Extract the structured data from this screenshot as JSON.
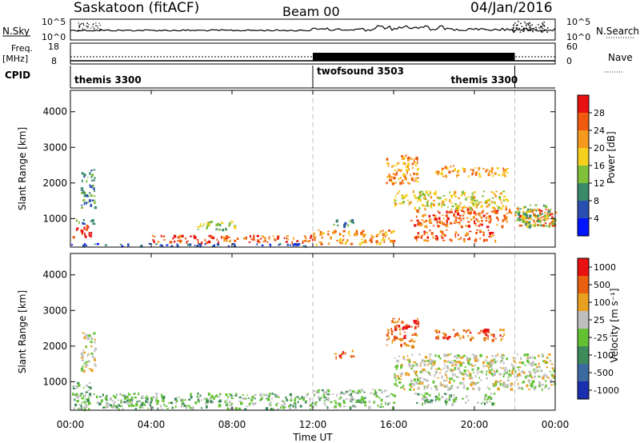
{
  "header": {
    "station": "Saskatoon (fitACF)",
    "beam": "Beam 00",
    "date": "04/Jan/2016"
  },
  "nsky_panel": {
    "left_label": "N.Sky",
    "left_ticks": [
      "10^5",
      "10^0"
    ],
    "right_label": "N.Search",
    "right_ticks": [
      "10^5",
      "10^0"
    ]
  },
  "freq_panel": {
    "left_label_top": "Freq.",
    "left_label_unit": "[MHz]",
    "left_ticks": [
      "18",
      "8"
    ],
    "right_label": "Nave",
    "right_ticks": [
      "60",
      "0"
    ]
  },
  "cpid": {
    "label": "CPID",
    "segments": [
      {
        "name": "themis 3300",
        "start_hour": 0,
        "end_hour": 12
      },
      {
        "name": "twofsound 3503",
        "start_hour": 12,
        "end_hour": 22
      },
      {
        "name": "themis 3300",
        "start_hour": 22,
        "end_hour": 24
      }
    ]
  },
  "colors": {
    "power": [
      "#0015ff",
      "#2a4fb0",
      "#3a8a6a",
      "#7fbf3a",
      "#f5d01e",
      "#f59a1e",
      "#f05a10",
      "#e81010"
    ],
    "velocity": [
      "#1a2fb0",
      "#3a6aa0",
      "#3e8a5a",
      "#63c233",
      "#bebebe",
      "#e8a020",
      "#e86010",
      "#e81010"
    ]
  },
  "chart_data": [
    {
      "type": "heatmap",
      "name": "power",
      "ylabel": "Slant Range [km]",
      "y_ticks": [
        "1000",
        "2000",
        "3000",
        "4000"
      ],
      "ylim": [
        200,
        4600
      ],
      "xlim": [
        0,
        24
      ],
      "colorbar_label": "Power [dB]",
      "colorbar_ticks": [
        "4",
        "8",
        "12",
        "16",
        "20",
        "24",
        "28"
      ],
      "vertical_markers_hours": [
        12,
        22
      ],
      "blobs": [
        {
          "t0": 0.1,
          "t1": 1.0,
          "r0": 500,
          "r1": 850,
          "level": 7
        },
        {
          "t0": 0.2,
          "t1": 1.2,
          "r0": 850,
          "r1": 1000,
          "level": 2
        },
        {
          "t0": 0.5,
          "t1": 1.2,
          "r0": 1300,
          "r1": 2400,
          "level": 2
        },
        {
          "t0": 0.0,
          "t1": 12.0,
          "r0": 250,
          "r1": 320,
          "level": 1
        },
        {
          "t0": 4.0,
          "t1": 12.0,
          "r0": 350,
          "r1": 550,
          "level": 6
        },
        {
          "t0": 6.2,
          "t1": 8.2,
          "r0": 700,
          "r1": 950,
          "level": 3
        },
        {
          "t0": 12.0,
          "t1": 16.0,
          "r0": 300,
          "r1": 700,
          "level": 5
        },
        {
          "t0": 13.0,
          "t1": 14.0,
          "r0": 800,
          "r1": 1000,
          "level": 2
        },
        {
          "t0": 15.6,
          "t1": 17.2,
          "r0": 2000,
          "r1": 2800,
          "level": 5
        },
        {
          "t0": 16.8,
          "t1": 24.0,
          "r0": 800,
          "r1": 1300,
          "level": 6
        },
        {
          "t0": 16.0,
          "t1": 21.6,
          "r0": 1300,
          "r1": 1800,
          "level": 4
        },
        {
          "t0": 18.0,
          "t1": 21.6,
          "r0": 2200,
          "r1": 2500,
          "level": 5
        },
        {
          "t0": 17.0,
          "t1": 21.0,
          "r0": 400,
          "r1": 700,
          "level": 6
        },
        {
          "t0": 22.0,
          "t1": 24.0,
          "r0": 800,
          "r1": 1400,
          "level": 3
        }
      ]
    },
    {
      "type": "heatmap",
      "name": "velocity",
      "ylabel": "Slant Range [km]",
      "y_ticks": [
        "1000",
        "2000",
        "3000",
        "4000"
      ],
      "ylim": [
        200,
        4600
      ],
      "xlim": [
        0,
        24
      ],
      "colorbar_label": "Velocity [m s⁻¹]",
      "colorbar_ticks": [
        "1000",
        "500",
        "100",
        "25",
        "-25",
        "-100",
        "-500",
        "-1000"
      ],
      "vertical_markers_hours": [
        12,
        22
      ],
      "blobs": [
        {
          "t0": 0.1,
          "t1": 1.0,
          "r0": 500,
          "r1": 1000,
          "level": 3
        },
        {
          "t0": 0.5,
          "t1": 1.2,
          "r0": 1300,
          "r1": 2400,
          "level": 4
        },
        {
          "t0": 0.0,
          "t1": 12.0,
          "r0": 250,
          "r1": 700,
          "level": 3
        },
        {
          "t0": 12.0,
          "t1": 16.0,
          "r0": 300,
          "r1": 800,
          "level": 3
        },
        {
          "t0": 15.6,
          "t1": 17.2,
          "r0": 2000,
          "r1": 2800,
          "level": 6
        },
        {
          "t0": 16.0,
          "t1": 24.0,
          "r0": 800,
          "r1": 1800,
          "level": 4
        },
        {
          "t0": 18.0,
          "t1": 21.6,
          "r0": 2200,
          "r1": 2500,
          "level": 6
        },
        {
          "t0": 17.0,
          "t1": 21.0,
          "r0": 400,
          "r1": 700,
          "level": 3
        },
        {
          "t0": 13.0,
          "t1": 14.0,
          "r0": 1700,
          "r1": 1900,
          "level": 6
        }
      ]
    }
  ],
  "x_axis": {
    "ticks": [
      "00:00",
      "04:00",
      "08:00",
      "12:00",
      "16:00",
      "20:00",
      "00:00"
    ],
    "label": "Time UT"
  }
}
